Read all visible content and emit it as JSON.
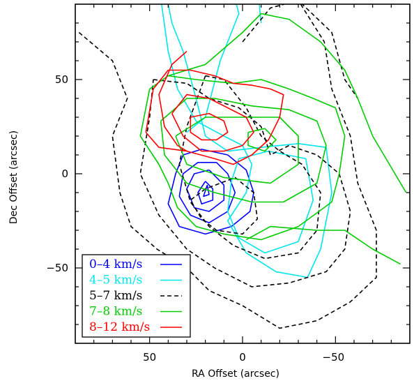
{
  "chart_data": {
    "type": "contour",
    "xlabel": "RA Offset (arcsec)",
    "ylabel": "Dec Offset (arcsec)",
    "x_axis_reversed": true,
    "xlim": [
      90,
      -90
    ],
    "ylim": [
      -90,
      90
    ],
    "x_ticks": [
      50,
      0,
      -50
    ],
    "x_tick_labels": [
      "50",
      "0",
      "−50"
    ],
    "y_ticks": [
      50,
      0,
      -50
    ],
    "y_tick_labels": [
      "50",
      "0",
      "−50"
    ],
    "legend_position": "bottom-left",
    "series": [
      {
        "name": "0–4 km/s",
        "color": "#0000ff",
        "line_style": "solid",
        "contours": [
          [
            [
              8,
              10
            ],
            [
              22,
              13
            ],
            [
              32,
              10
            ],
            [
              36,
              0
            ],
            [
              40,
              -16
            ],
            [
              34,
              -28
            ],
            [
              20,
              -32
            ],
            [
              6,
              -28
            ],
            [
              -4,
              -20
            ],
            [
              -6,
              -10
            ],
            [
              -2,
              2
            ],
            [
              8,
              10
            ]
          ],
          [
            [
              14,
              6
            ],
            [
              24,
              6
            ],
            [
              32,
              0
            ],
            [
              34,
              -12
            ],
            [
              28,
              -22
            ],
            [
              18,
              -26
            ],
            [
              8,
              -20
            ],
            [
              4,
              -10
            ],
            [
              8,
              0
            ],
            [
              14,
              6
            ]
          ],
          [
            [
              18,
              2
            ],
            [
              26,
              0
            ],
            [
              30,
              -8
            ],
            [
              26,
              -18
            ],
            [
              18,
              -20
            ],
            [
              10,
              -14
            ],
            [
              10,
              -6
            ],
            [
              18,
              2
            ]
          ],
          [
            [
              20,
              -4
            ],
            [
              24,
              -10
            ],
            [
              22,
              -16
            ],
            [
              16,
              -14
            ],
            [
              16,
              -8
            ],
            [
              20,
              -4
            ]
          ],
          [
            [
              19,
              -6
            ],
            [
              21,
              -12
            ],
            [
              18,
              -11
            ],
            [
              19,
              -6
            ]
          ]
        ]
      },
      {
        "name": "4–5 km/s",
        "color": "#00e5ee",
        "line_style": "solid",
        "contours": [
          [
            [
              42,
              100
            ],
            [
              38,
              80
            ],
            [
              32,
              65
            ],
            [
              25,
              40
            ],
            [
              20,
              20
            ],
            [
              8,
              12
            ],
            [
              -10,
              14
            ],
            [
              -30,
              16
            ],
            [
              -45,
              14
            ],
            [
              -48,
              -10
            ],
            [
              -42,
              -40
            ],
            [
              -35,
              -55
            ],
            [
              -18,
              -52
            ],
            [
              -2,
              -42
            ],
            [
              8,
              -25
            ],
            [
              -2,
              -10
            ],
            [
              -5,
              5
            ],
            [
              0,
              15
            ],
            [
              10,
              20
            ],
            [
              25,
              28
            ],
            [
              35,
              45
            ],
            [
              40,
              65
            ],
            [
              45,
              100
            ]
          ],
          [
            [
              2,
              8
            ],
            [
              -14,
              12
            ],
            [
              -34,
              8
            ],
            [
              -38,
              -14
            ],
            [
              -30,
              -36
            ],
            [
              -12,
              -42
            ],
            [
              2,
              -34
            ],
            [
              8,
              -20
            ],
            [
              6,
              -4
            ],
            [
              2,
              8
            ]
          ],
          [
            [
              -10,
              80
            ],
            [
              -8,
              100
            ]
          ],
          [
            [
              30,
              22
            ],
            [
              20,
              30
            ],
            [
              12,
              60
            ],
            [
              2,
              85
            ],
            [
              6,
              100
            ]
          ]
        ]
      },
      {
        "name": "5–7 km/s",
        "color": "#000000",
        "line_style": "dashed",
        "contours": [
          [
            [
              88,
              75
            ],
            [
              70,
              60
            ],
            [
              62,
              40
            ],
            [
              70,
              20
            ],
            [
              66,
              -10
            ],
            [
              60,
              -28
            ],
            [
              46,
              -40
            ],
            [
              30,
              -50
            ],
            [
              18,
              -62
            ],
            [
              0,
              -70
            ],
            [
              -20,
              -82
            ],
            [
              -40,
              -78
            ],
            [
              -58,
              -68
            ],
            [
              -72,
              -55
            ],
            [
              -72,
              -30
            ],
            [
              -62,
              -5
            ],
            [
              -58,
              20
            ],
            [
              -48,
              45
            ],
            [
              -44,
              70
            ],
            [
              -30,
              92
            ]
          ],
          [
            [
              48,
              50
            ],
            [
              30,
              48
            ],
            [
              18,
              40
            ],
            [
              2,
              35
            ],
            [
              -10,
              25
            ],
            [
              -15,
              10
            ],
            [
              -25,
              15
            ],
            [
              -40,
              10
            ],
            [
              -52,
              0
            ],
            [
              -58,
              -20
            ],
            [
              -55,
              -40
            ],
            [
              -45,
              -52
            ],
            [
              -25,
              -58
            ],
            [
              -5,
              -60
            ],
            [
              15,
              -50
            ],
            [
              30,
              -40
            ],
            [
              45,
              -22
            ],
            [
              55,
              0
            ],
            [
              50,
              30
            ],
            [
              48,
              50
            ]
          ],
          [
            [
              20,
              52
            ],
            [
              10,
              50
            ],
            [
              -2,
              35
            ],
            [
              -10,
              20
            ],
            [
              -20,
              12
            ],
            [
              -32,
              5
            ],
            [
              -42,
              -10
            ],
            [
              -40,
              -30
            ],
            [
              -30,
              -42
            ],
            [
              -12,
              -45
            ],
            [
              5,
              -38
            ],
            [
              18,
              -28
            ],
            [
              28,
              -15
            ],
            [
              34,
              5
            ],
            [
              30,
              25
            ],
            [
              20,
              52
            ]
          ],
          [
            [
              20,
              -8
            ],
            [
              28,
              -14
            ],
            [
              22,
              -24
            ],
            [
              14,
              -30
            ],
            [
              0,
              -32
            ],
            [
              -8,
              -24
            ],
            [
              -6,
              -10
            ],
            [
              4,
              -2
            ],
            [
              20,
              -8
            ]
          ],
          [
            [
              0,
              70
            ],
            [
              -15,
              88
            ],
            [
              -30,
              92
            ],
            [
              -48,
              75
            ],
            [
              -55,
              50
            ],
            [
              -62,
              40
            ]
          ]
        ]
      },
      {
        "name": "7–8 km/s",
        "color": "#00cc00",
        "line_style": "solid",
        "contours": [
          [
            [
              50,
              45
            ],
            [
              40,
              52
            ],
            [
              25,
              50
            ],
            [
              5,
              48
            ],
            [
              -10,
              50
            ],
            [
              -25,
              45
            ],
            [
              -38,
              40
            ],
            [
              -50,
              35
            ],
            [
              -55,
              20
            ],
            [
              -52,
              0
            ],
            [
              -48,
              -15
            ],
            [
              -30,
              -28
            ],
            [
              -10,
              -35
            ],
            [
              10,
              -32
            ],
            [
              25,
              -28
            ],
            [
              35,
              -18
            ],
            [
              40,
              -5
            ],
            [
              45,
              5
            ],
            [
              55,
              20
            ],
            [
              50,
              45
            ]
          ],
          [
            [
              40,
              52
            ],
            [
              20,
              58
            ],
            [
              0,
              75
            ],
            [
              -10,
              85
            ],
            [
              -25,
              82
            ],
            [
              -42,
              70
            ],
            [
              -55,
              55
            ],
            [
              -62,
              40
            ],
            [
              -70,
              20
            ],
            [
              -82,
              0
            ],
            [
              -88,
              -10
            ]
          ],
          [
            [
              -2,
              -35
            ],
            [
              -15,
              -28
            ],
            [
              -40,
              -30
            ],
            [
              -55,
              -30
            ],
            [
              -70,
              -40
            ],
            [
              -85,
              -48
            ]
          ],
          [
            [
              44,
              28
            ],
            [
              30,
              40
            ],
            [
              15,
              40
            ],
            [
              -5,
              36
            ],
            [
              -25,
              34
            ],
            [
              -40,
              28
            ],
            [
              -45,
              15
            ],
            [
              -40,
              -5
            ],
            [
              -22,
              -15
            ],
            [
              -5,
              -15
            ],
            [
              15,
              -10
            ],
            [
              30,
              -5
            ],
            [
              42,
              10
            ],
            [
              44,
              28
            ]
          ],
          [
            [
              36,
              20
            ],
            [
              20,
              30
            ],
            [
              0,
              30
            ],
            [
              -20,
              30
            ],
            [
              -30,
              20
            ],
            [
              -30,
              5
            ],
            [
              -15,
              -5
            ],
            [
              10,
              -2
            ],
            [
              30,
              5
            ],
            [
              36,
              20
            ]
          ],
          [
            [
              -3,
              22
            ],
            [
              -12,
              24
            ],
            [
              -18,
              18
            ],
            [
              -12,
              12
            ],
            [
              -3,
              15
            ],
            [
              -3,
              22
            ]
          ]
        ]
      },
      {
        "name": "8–12 km/s",
        "color": "#ff0000",
        "line_style": "solid",
        "contours": [
          [
            [
              52,
              22
            ],
            [
              48,
              45
            ],
            [
              40,
              55
            ],
            [
              28,
              55
            ],
            [
              15,
              52
            ],
            [
              5,
              48
            ],
            [
              -5,
              47
            ],
            [
              -15,
              45
            ],
            [
              -22,
              42
            ],
            [
              -20,
              30
            ],
            [
              -14,
              18
            ],
            [
              -5,
              10
            ],
            [
              5,
              5
            ],
            [
              15,
              8
            ],
            [
              30,
              12
            ],
            [
              45,
              14
            ],
            [
              52,
              22
            ]
          ],
          [
            [
              30,
              65
            ],
            [
              38,
              58
            ],
            [
              45,
              42
            ],
            [
              42,
              25
            ],
            [
              35,
              15
            ],
            [
              30,
              12
            ]
          ],
          [
            [
              38,
              32
            ],
            [
              30,
              42
            ],
            [
              18,
              40
            ],
            [
              8,
              35
            ],
            [
              -2,
              30
            ],
            [
              -6,
              22
            ],
            [
              0,
              15
            ],
            [
              10,
              12
            ],
            [
              22,
              12
            ],
            [
              32,
              20
            ],
            [
              38,
              32
            ]
          ],
          [
            [
              28,
              30
            ],
            [
              18,
              32
            ],
            [
              10,
              28
            ],
            [
              8,
              22
            ],
            [
              14,
              18
            ],
            [
              22,
              18
            ],
            [
              28,
              22
            ],
            [
              28,
              30
            ]
          ]
        ]
      }
    ]
  }
}
